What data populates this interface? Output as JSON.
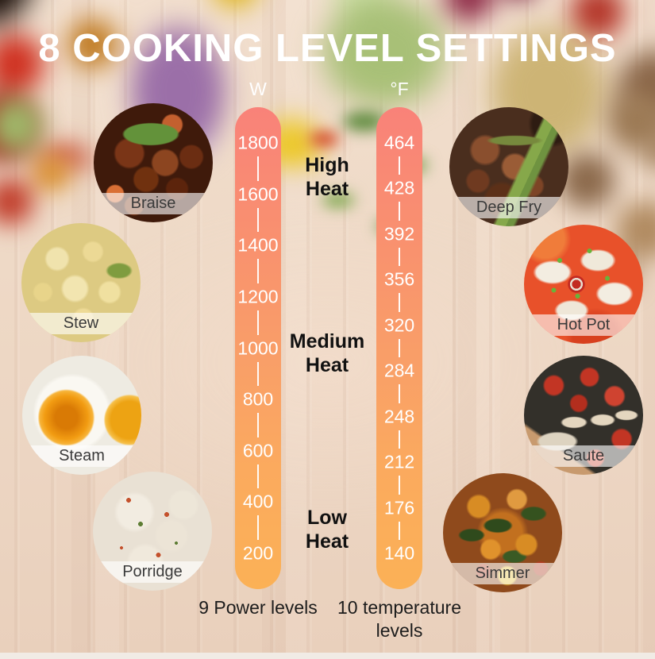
{
  "title": "8 COOKING LEVEL SETTINGS",
  "bars": [
    {
      "unit": "W",
      "values": [
        "1800",
        "1600",
        "1400",
        "1200",
        "1000",
        "800",
        "600",
        "400",
        "200"
      ],
      "footer": "9 Power levels"
    },
    {
      "unit": "°F",
      "values": [
        "464",
        "428",
        "392",
        "356",
        "320",
        "284",
        "248",
        "212",
        "176",
        "140"
      ],
      "footer": "10 temperature levels"
    }
  ],
  "heat_zones": [
    {
      "label": "High Heat"
    },
    {
      "label": "Medium Heat"
    },
    {
      "label": "Low Heat"
    }
  ],
  "food_items": [
    {
      "label": "Braise"
    },
    {
      "label": "Stew"
    },
    {
      "label": "Steam"
    },
    {
      "label": "Porridge"
    },
    {
      "label": "Deep Fry"
    },
    {
      "label": "Hot Pot"
    },
    {
      "label": "Saute"
    },
    {
      "label": "Simmer"
    }
  ],
  "colors": {
    "bar_gradient_top": "#f98279",
    "bar_gradient_bottom": "#fbb156",
    "scale_text": "#ffffff",
    "heat_text": "#111111",
    "title_text": "#ffffff",
    "footer_text": "#1c1c1c"
  }
}
